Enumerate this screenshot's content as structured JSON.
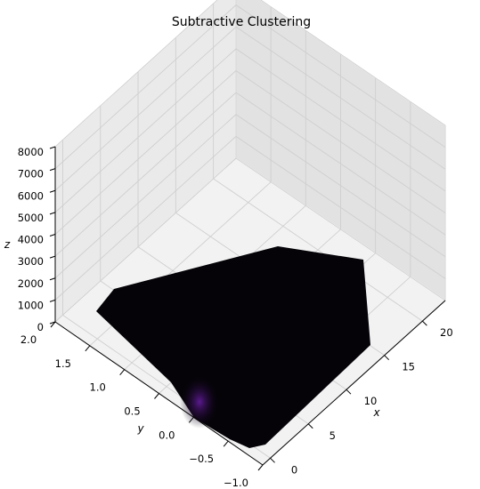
{
  "chart_data": {
    "type": "surface",
    "title": "Subtractive Clustering",
    "xlabel": "x",
    "ylabel": "y",
    "zlabel": "z",
    "xlim": [
      -1,
      23
    ],
    "ylim": [
      -1.0,
      2.0
    ],
    "zlim": [
      0,
      8000
    ],
    "x_ticks": [
      "0",
      "5",
      "10",
      "15",
      "20"
    ],
    "y_ticks": [
      "−1.0",
      "−0.5",
      "0.0",
      "0.5",
      "1.0",
      "1.5",
      "2.0"
    ],
    "z_ticks": [
      "0",
      "1000",
      "2000",
      "3000",
      "4000",
      "5000",
      "6000",
      "7000",
      "8000"
    ],
    "grid": true,
    "colormap": "inferno",
    "surface_color": "#050308",
    "peak_color": "#5b1a8f",
    "pane_color": "#eaeaea"
  }
}
